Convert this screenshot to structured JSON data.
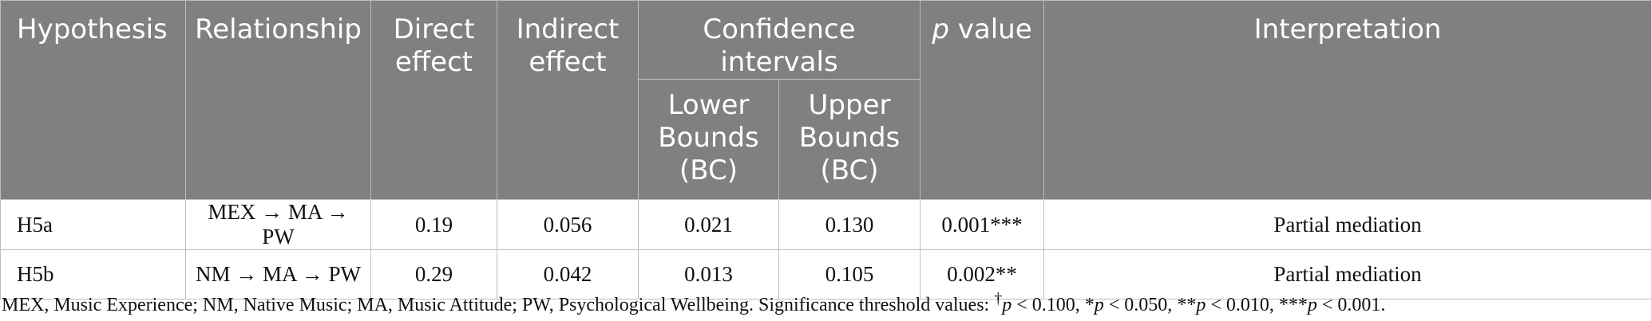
{
  "table": {
    "headers": {
      "hypothesis": "Hypothesis",
      "relationship": "Relationship",
      "direct_effect_1": "Direct",
      "direct_effect_2": "effect",
      "indirect_effect_1": "Indirect",
      "indirect_effect_2": "effect",
      "confidence_intervals": "Confidence intervals",
      "lower_1": "Lower",
      "lower_2": "Bounds",
      "lower_3": "(BC)",
      "upper_1": "Upper",
      "upper_2": "Bounds",
      "upper_3": "(BC)",
      "p_italic": "p",
      "p_rest": " value",
      "interpretation": "Interpretation"
    },
    "rows": [
      {
        "hypothesis": "H5a",
        "relationship": "MEX → MA → PW",
        "direct": "0.19",
        "indirect": "0.056",
        "lower": "0.021",
        "upper": "0.130",
        "p": "0.001***",
        "interpretation": "Partial mediation"
      },
      {
        "hypothesis": "H5b",
        "relationship": "NM → MA → PW",
        "direct": "0.29",
        "indirect": "0.042",
        "lower": "0.013",
        "upper": "0.105",
        "p": "0.002**",
        "interpretation": "Partial mediation"
      }
    ]
  },
  "footnote": {
    "abbrev": "MEX, Music Experience; NM, Native Music; MA, Music Attitude; PW, Psychological Wellbeing. Significance threshold values: ",
    "t1_sym": "†",
    "t1_p": "p",
    "t1_val": " < 0.100, ",
    "t2_sym": "*",
    "t2_p": "p",
    "t2_val": " < 0.050, ",
    "t3_sym": "**",
    "t3_p": "p",
    "t3_val": " < 0.010, ",
    "t4_sym": "***",
    "t4_p": "p",
    "t4_val": " < 0.001."
  }
}
